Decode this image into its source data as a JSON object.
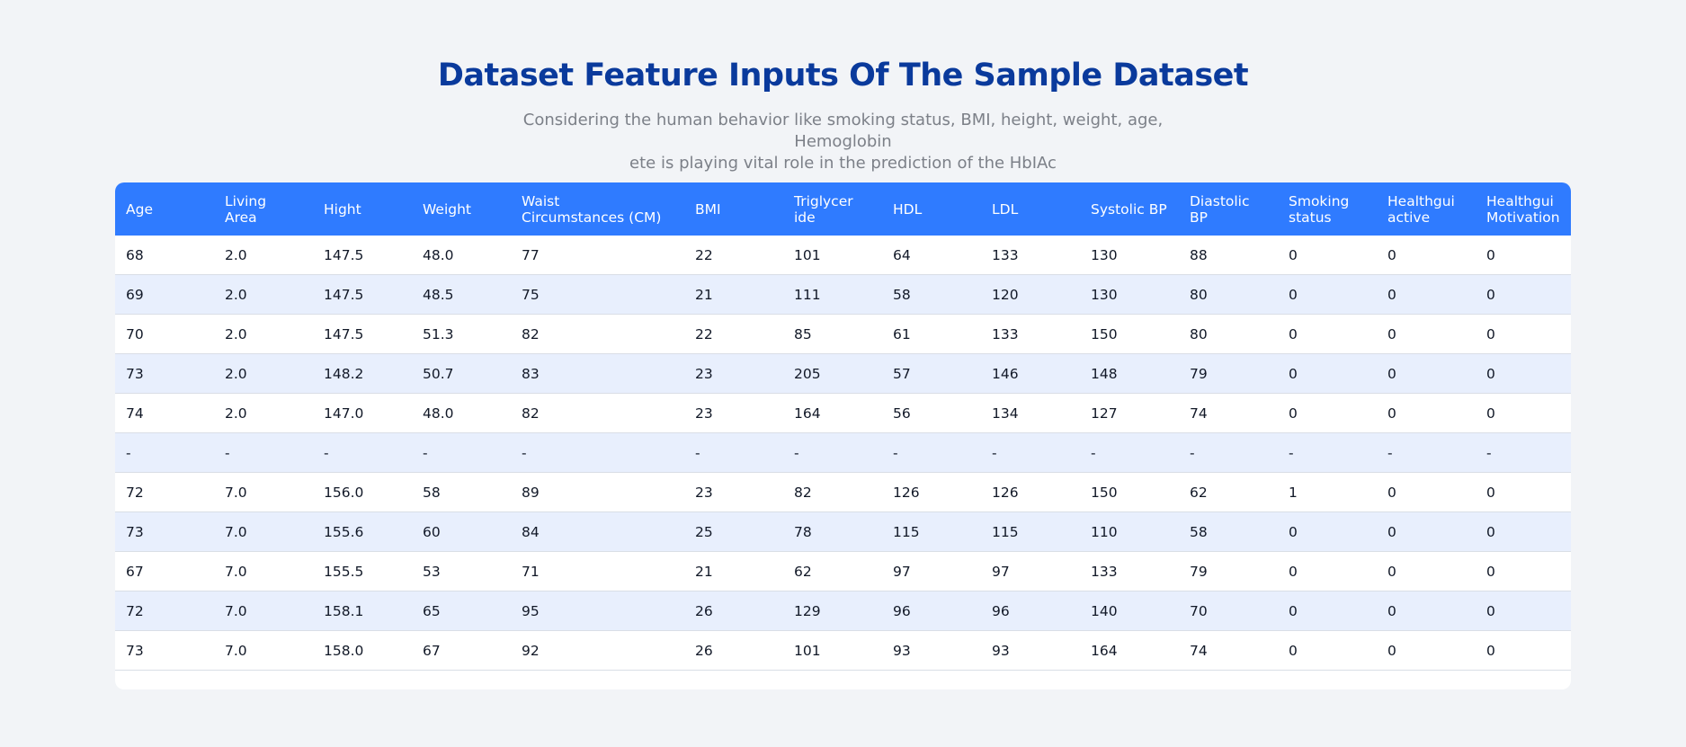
{
  "header": {
    "title": "Dataset Feature Inputs Of The Sample Dataset",
    "subtitle_line1": "Considering the human behavior like smoking status, BMI, height, weight, age, Hemoglobin",
    "subtitle_line2": "ete is playing vital role in the prediction of the HbIAc"
  },
  "table": {
    "columns": [
      [
        "Age"
      ],
      [
        "Living",
        "Area"
      ],
      [
        "Hight"
      ],
      [
        "Weight"
      ],
      [
        "Waist",
        "Circumstances (CM)"
      ],
      [
        "BMI"
      ],
      [
        "Triglycer",
        "ide"
      ],
      [
        "HDL"
      ],
      [
        "LDL"
      ],
      [
        "Systolic BP"
      ],
      [
        "Diastolic",
        "BP"
      ],
      [
        "Smoking",
        "status"
      ],
      [
        "Healthgui",
        "active"
      ],
      [
        "Healthgui",
        "Motivation"
      ]
    ],
    "rows": [
      [
        "68",
        "2.0",
        "147.5",
        "48.0",
        "77",
        "22",
        "101",
        "64",
        "133",
        "130",
        "88",
        "0",
        "0",
        "0"
      ],
      [
        "69",
        "2.0",
        "147.5",
        "48.5",
        "75",
        "21",
        "111",
        "58",
        "120",
        "130",
        "80",
        "0",
        "0",
        "0"
      ],
      [
        "70",
        "2.0",
        "147.5",
        "51.3",
        "82",
        "22",
        "85",
        "61",
        "133",
        "150",
        "80",
        "0",
        "0",
        "0"
      ],
      [
        "73",
        "2.0",
        "148.2",
        "50.7",
        "83",
        "23",
        "205",
        "57",
        "146",
        "148",
        "79",
        "0",
        "0",
        "0"
      ],
      [
        "74",
        "2.0",
        "147.0",
        "48.0",
        "82",
        "23",
        "164",
        "56",
        "134",
        "127",
        "74",
        "0",
        "0",
        "0"
      ],
      [
        "-",
        "-",
        "-",
        "-",
        "-",
        "-",
        "-",
        "-",
        "-",
        "-",
        "-",
        "-",
        "-",
        "-"
      ],
      [
        "72",
        "7.0",
        "156.0",
        "58",
        "89",
        "23",
        "82",
        "126",
        "126",
        "150",
        "62",
        "1",
        "0",
        "0"
      ],
      [
        "73",
        "7.0",
        "155.6",
        "60",
        "84",
        "25",
        "78",
        "115",
        "115",
        "110",
        "58",
        "0",
        "0",
        "0"
      ],
      [
        "67",
        "7.0",
        "155.5",
        "53",
        "71",
        "21",
        "62",
        "97",
        "97",
        "133",
        "79",
        "0",
        "0",
        "0"
      ],
      [
        "72",
        "7.0",
        "158.1",
        "65",
        "95",
        "26",
        "129",
        "96",
        "96",
        "140",
        "70",
        "0",
        "0",
        "0"
      ],
      [
        "73",
        "7.0",
        "158.0",
        "67",
        "92",
        "26",
        "101",
        "93",
        "93",
        "164",
        "74",
        "0",
        "0",
        "0"
      ]
    ]
  }
}
